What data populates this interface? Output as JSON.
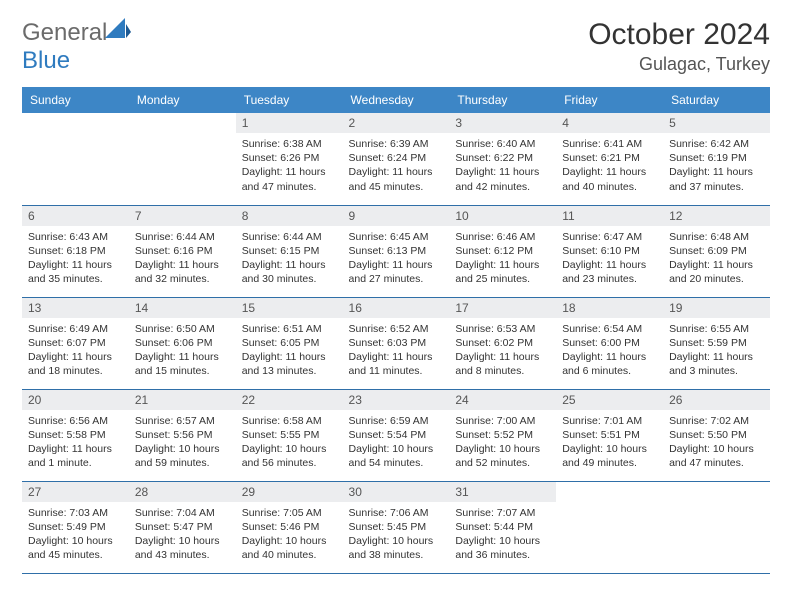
{
  "brand": {
    "text_gray": "General",
    "text_blue": "Blue"
  },
  "header": {
    "month_title": "October 2024",
    "location": "Gulagac, Turkey"
  },
  "colors": {
    "header_bar": "#3d86c6",
    "row_border": "#2f6fa8",
    "daynum_bg": "#ecedef",
    "logo_gray": "#6b6b6b",
    "logo_blue": "#2f7bbf"
  },
  "weekdays": [
    "Sunday",
    "Monday",
    "Tuesday",
    "Wednesday",
    "Thursday",
    "Friday",
    "Saturday"
  ],
  "cells": [
    [
      null,
      null,
      {
        "n": "1",
        "sr": "6:38 AM",
        "ss": "6:26 PM",
        "dl": "11 hours and 47 minutes."
      },
      {
        "n": "2",
        "sr": "6:39 AM",
        "ss": "6:24 PM",
        "dl": "11 hours and 45 minutes."
      },
      {
        "n": "3",
        "sr": "6:40 AM",
        "ss": "6:22 PM",
        "dl": "11 hours and 42 minutes."
      },
      {
        "n": "4",
        "sr": "6:41 AM",
        "ss": "6:21 PM",
        "dl": "11 hours and 40 minutes."
      },
      {
        "n": "5",
        "sr": "6:42 AM",
        "ss": "6:19 PM",
        "dl": "11 hours and 37 minutes."
      }
    ],
    [
      {
        "n": "6",
        "sr": "6:43 AM",
        "ss": "6:18 PM",
        "dl": "11 hours and 35 minutes."
      },
      {
        "n": "7",
        "sr": "6:44 AM",
        "ss": "6:16 PM",
        "dl": "11 hours and 32 minutes."
      },
      {
        "n": "8",
        "sr": "6:44 AM",
        "ss": "6:15 PM",
        "dl": "11 hours and 30 minutes."
      },
      {
        "n": "9",
        "sr": "6:45 AM",
        "ss": "6:13 PM",
        "dl": "11 hours and 27 minutes."
      },
      {
        "n": "10",
        "sr": "6:46 AM",
        "ss": "6:12 PM",
        "dl": "11 hours and 25 minutes."
      },
      {
        "n": "11",
        "sr": "6:47 AM",
        "ss": "6:10 PM",
        "dl": "11 hours and 23 minutes."
      },
      {
        "n": "12",
        "sr": "6:48 AM",
        "ss": "6:09 PM",
        "dl": "11 hours and 20 minutes."
      }
    ],
    [
      {
        "n": "13",
        "sr": "6:49 AM",
        "ss": "6:07 PM",
        "dl": "11 hours and 18 minutes."
      },
      {
        "n": "14",
        "sr": "6:50 AM",
        "ss": "6:06 PM",
        "dl": "11 hours and 15 minutes."
      },
      {
        "n": "15",
        "sr": "6:51 AM",
        "ss": "6:05 PM",
        "dl": "11 hours and 13 minutes."
      },
      {
        "n": "16",
        "sr": "6:52 AM",
        "ss": "6:03 PM",
        "dl": "11 hours and 11 minutes."
      },
      {
        "n": "17",
        "sr": "6:53 AM",
        "ss": "6:02 PM",
        "dl": "11 hours and 8 minutes."
      },
      {
        "n": "18",
        "sr": "6:54 AM",
        "ss": "6:00 PM",
        "dl": "11 hours and 6 minutes."
      },
      {
        "n": "19",
        "sr": "6:55 AM",
        "ss": "5:59 PM",
        "dl": "11 hours and 3 minutes."
      }
    ],
    [
      {
        "n": "20",
        "sr": "6:56 AM",
        "ss": "5:58 PM",
        "dl": "11 hours and 1 minute."
      },
      {
        "n": "21",
        "sr": "6:57 AM",
        "ss": "5:56 PM",
        "dl": "10 hours and 59 minutes."
      },
      {
        "n": "22",
        "sr": "6:58 AM",
        "ss": "5:55 PM",
        "dl": "10 hours and 56 minutes."
      },
      {
        "n": "23",
        "sr": "6:59 AM",
        "ss": "5:54 PM",
        "dl": "10 hours and 54 minutes."
      },
      {
        "n": "24",
        "sr": "7:00 AM",
        "ss": "5:52 PM",
        "dl": "10 hours and 52 minutes."
      },
      {
        "n": "25",
        "sr": "7:01 AM",
        "ss": "5:51 PM",
        "dl": "10 hours and 49 minutes."
      },
      {
        "n": "26",
        "sr": "7:02 AM",
        "ss": "5:50 PM",
        "dl": "10 hours and 47 minutes."
      }
    ],
    [
      {
        "n": "27",
        "sr": "7:03 AM",
        "ss": "5:49 PM",
        "dl": "10 hours and 45 minutes."
      },
      {
        "n": "28",
        "sr": "7:04 AM",
        "ss": "5:47 PM",
        "dl": "10 hours and 43 minutes."
      },
      {
        "n": "29",
        "sr": "7:05 AM",
        "ss": "5:46 PM",
        "dl": "10 hours and 40 minutes."
      },
      {
        "n": "30",
        "sr": "7:06 AM",
        "ss": "5:45 PM",
        "dl": "10 hours and 38 minutes."
      },
      {
        "n": "31",
        "sr": "7:07 AM",
        "ss": "5:44 PM",
        "dl": "10 hours and 36 minutes."
      },
      null,
      null
    ]
  ],
  "labels": {
    "sunrise": "Sunrise:",
    "sunset": "Sunset:",
    "daylight": "Daylight:"
  }
}
